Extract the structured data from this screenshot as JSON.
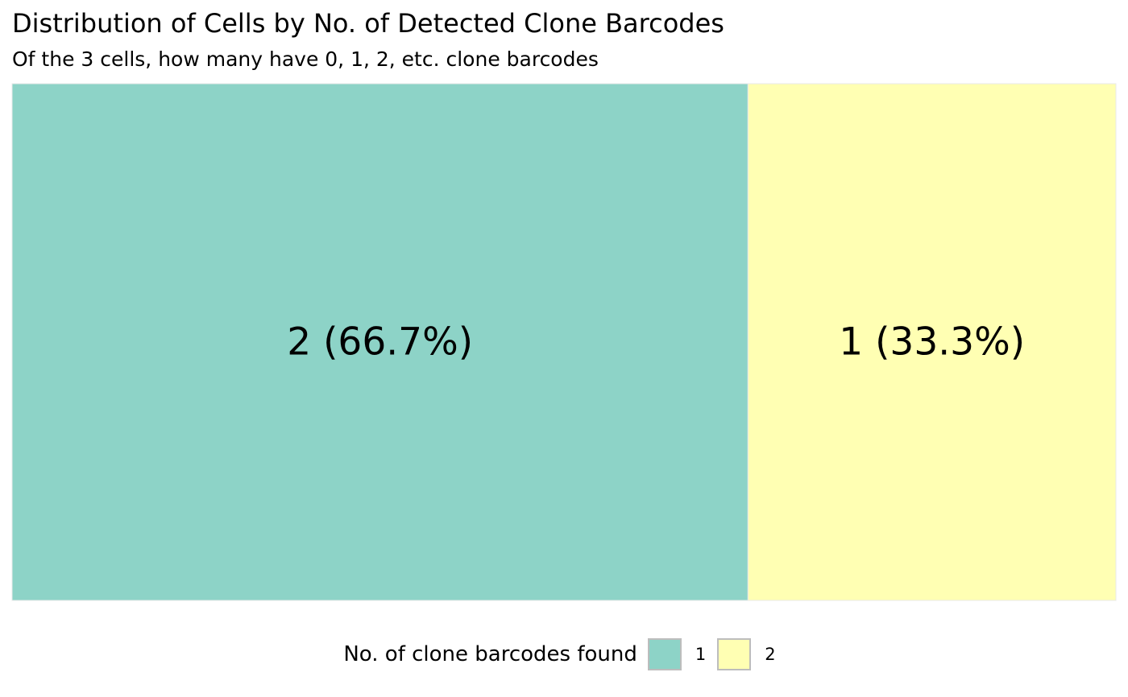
{
  "chart_data": {
    "type": "treemap",
    "title": "Distribution of Cells by No. of Detected Clone Barcodes",
    "subtitle": "Of the 3 cells, how many have 0, 1, 2, etc. clone barcodes",
    "legend_title": "No. of clone barcodes found",
    "legend_position": "bottom",
    "categories": [
      "1",
      "2"
    ],
    "values": [
      2,
      1
    ],
    "percent": [
      66.7,
      33.3
    ],
    "labels": [
      "2 (66.7%)",
      "1 (33.3%)"
    ],
    "colors": [
      "#8dd3c7",
      "#ffffb3"
    ]
  }
}
